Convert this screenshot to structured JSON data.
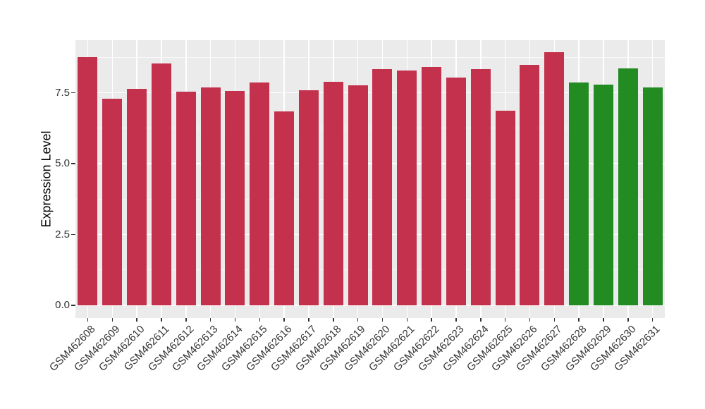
{
  "chart_data": {
    "type": "bar",
    "title": "",
    "xlabel": "",
    "ylabel": "Expression Level",
    "categories": [
      "GSM462608",
      "GSM462609",
      "GSM462610",
      "GSM462611",
      "GSM462612",
      "GSM462613",
      "GSM462614",
      "GSM462615",
      "GSM462616",
      "GSM462617",
      "GSM462618",
      "GSM462619",
      "GSM462620",
      "GSM462621",
      "GSM462622",
      "GSM462623",
      "GSM462624",
      "GSM462625",
      "GSM462626",
      "GSM462627",
      "GSM462628",
      "GSM462629",
      "GSM462630",
      "GSM462631"
    ],
    "values": [
      8.77,
      7.3,
      7.63,
      8.54,
      7.55,
      7.7,
      7.57,
      7.87,
      6.84,
      7.58,
      7.88,
      7.76,
      8.34,
      8.3,
      8.41,
      8.05,
      8.33,
      6.88,
      8.49,
      8.93,
      7.87,
      7.78,
      8.36,
      7.69
    ],
    "bar_groups": [
      "crimson",
      "crimson",
      "crimson",
      "crimson",
      "crimson",
      "crimson",
      "crimson",
      "crimson",
      "crimson",
      "crimson",
      "crimson",
      "crimson",
      "crimson",
      "crimson",
      "crimson",
      "crimson",
      "crimson",
      "crimson",
      "crimson",
      "crimson",
      "green",
      "green",
      "green",
      "green"
    ],
    "group_colors": {
      "crimson": "#C3314D",
      "green": "#228B22"
    },
    "y_tick_labels": [
      "0.0",
      "2.5",
      "5.0",
      "7.5"
    ],
    "y_tick_values": [
      0,
      2.5,
      5,
      7.5
    ],
    "y_minor_tick_values": [
      1.25,
      3.75,
      6.25,
      8.75
    ],
    "ylim": [
      -0.45,
      9.36
    ],
    "x_tick_rotation": 45,
    "grid": true,
    "legend_position": "none",
    "panel_background": "#EBEBEB",
    "grid_color": "#FFFFFF",
    "axis_text_color": "#333333"
  }
}
